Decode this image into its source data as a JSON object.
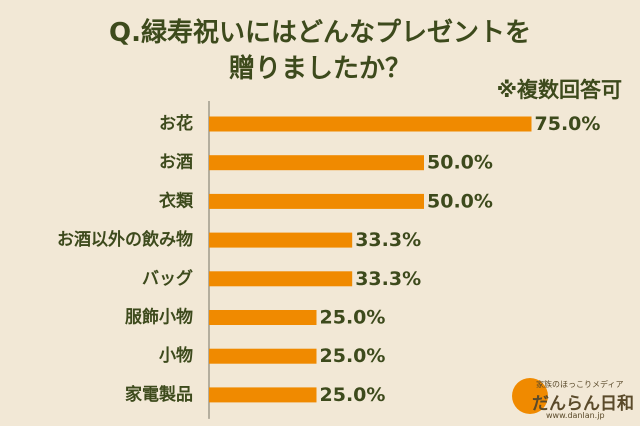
{
  "chart_data": {
    "type": "bar",
    "orientation": "horizontal",
    "title_line1": "Q.緑寿祝いにはどんなプレゼントを",
    "title_line2": "贈りましたか？",
    "note": "※複数回答可",
    "categories": [
      "お花",
      "お酒",
      "衣類",
      "お酒以外の飲み物",
      "バッグ",
      "服飾小物",
      "小物",
      "家電製品"
    ],
    "values": [
      75.0,
      50.0,
      50.0,
      33.3,
      33.3,
      25.0,
      25.0,
      25.0
    ],
    "value_labels": [
      "75.0%",
      "50.0%",
      "50.0%",
      "33.3%",
      "33.3%",
      "25.0%",
      "25.0%",
      "25.0%"
    ],
    "xlim": [
      0,
      100
    ],
    "grid": false,
    "bar_color": "#F08A00",
    "text_color": "#3D4A1C",
    "background": "#F2E8D6"
  },
  "brand": {
    "tagline": "家族のほっこりメディア",
    "name": "だんらん日和",
    "url": "www.danlan.jp",
    "color": "#F08A00"
  }
}
